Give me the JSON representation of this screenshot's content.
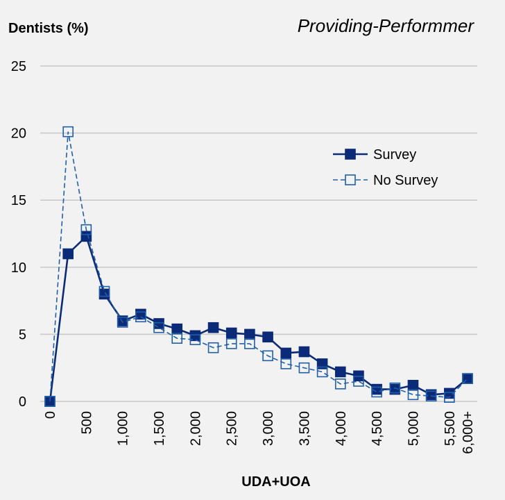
{
  "chart_data": {
    "type": "line",
    "title": "Providing-Performmer",
    "ylabel": "Dentists (%)",
    "xlabel": "UDA+UOA",
    "categories": [
      "0",
      null,
      "500",
      null,
      "1,000",
      null,
      "1,500",
      null,
      "2,000",
      null,
      "2,500",
      null,
      "3,000",
      null,
      "3,500",
      null,
      "4,000",
      null,
      "4,500",
      null,
      "5,000",
      null,
      "5,500",
      "6,000+"
    ],
    "series": [
      {
        "name": "Survey",
        "color": "#0b2a78",
        "dashed": false,
        "filled": true,
        "values": [
          0,
          11.0,
          12.3,
          8.0,
          6.0,
          6.5,
          5.8,
          5.4,
          4.9,
          5.5,
          5.1,
          5.0,
          4.8,
          3.6,
          3.7,
          2.8,
          2.2,
          1.9,
          0.9,
          0.9,
          1.2,
          0.5,
          0.6,
          1.7
        ]
      },
      {
        "name": "No Survey",
        "color": "#1f5fa8",
        "dashed": true,
        "filled": false,
        "values": [
          0,
          20.1,
          12.8,
          8.2,
          5.9,
          6.3,
          5.5,
          4.7,
          4.6,
          4.0,
          4.3,
          4.3,
          3.4,
          2.8,
          2.5,
          2.2,
          1.3,
          1.5,
          0.7,
          1.0,
          0.5,
          0.4,
          0.3,
          1.7
        ]
      }
    ],
    "ylim": [
      0,
      25
    ],
    "yticks": [
      0,
      5,
      10,
      15,
      20,
      25
    ],
    "grid": true,
    "legend": "right"
  }
}
